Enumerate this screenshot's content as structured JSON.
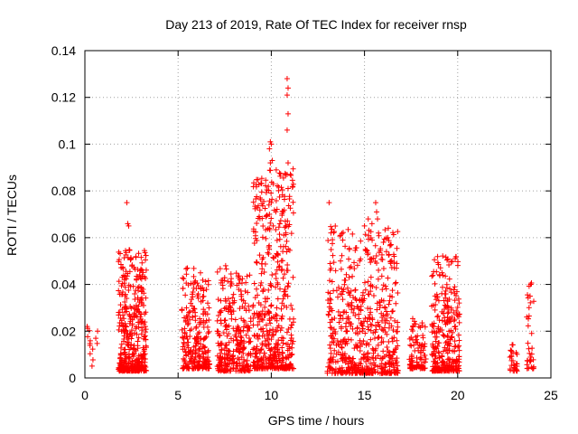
{
  "chart_data": {
    "type": "scatter",
    "title": "Day 213 of 2019, Rate Of TEC Index for receiver rnsp",
    "xlabel": "GPS time / hours",
    "ylabel": "ROTI / TECUs",
    "xlim": [
      0,
      25
    ],
    "ylim": [
      0,
      0.14
    ],
    "x_ticks": [
      0,
      5,
      10,
      15,
      20,
      25
    ],
    "x_tick_labels": [
      "0",
      "5",
      "10",
      "15",
      "20",
      "25"
    ],
    "y_ticks": [
      0,
      0.02,
      0.04,
      0.06,
      0.08,
      0.1,
      0.12,
      0.14
    ],
    "y_tick_labels": [
      "0",
      "0.02",
      "0.04",
      "0.06",
      "0.08",
      "0.1",
      "0.12",
      "0.14"
    ],
    "grid": true,
    "marker": "+",
    "color": "#ff0000",
    "series": [
      {
        "name": "ROTI",
        "clusters": [
          {
            "x_range": [
              0.1,
              0.7
            ],
            "y_range": [
              0.005,
              0.022
            ],
            "count": 14
          },
          {
            "x_range": [
              1.8,
              3.3
            ],
            "y_range": [
              0.003,
              0.055
            ],
            "count": 420
          },
          {
            "x_range": [
              5.2,
              6.7
            ],
            "y_range": [
              0.004,
              0.047
            ],
            "count": 260
          },
          {
            "x_range": [
              7.1,
              8.9
            ],
            "y_range": [
              0.003,
              0.047
            ],
            "count": 300
          },
          {
            "x_range": [
              9.0,
              11.2
            ],
            "y_range": [
              0.004,
              0.09
            ],
            "count": 500
          },
          {
            "x_range": [
              13.0,
              16.8
            ],
            "y_range": [
              0.002,
              0.065
            ],
            "count": 620
          },
          {
            "x_range": [
              17.4,
              18.3
            ],
            "y_range": [
              0.004,
              0.026
            ],
            "count": 100
          },
          {
            "x_range": [
              18.6,
              20.1
            ],
            "y_range": [
              0.003,
              0.053
            ],
            "count": 300
          },
          {
            "x_range": [
              22.8,
              23.2
            ],
            "y_range": [
              0.003,
              0.018
            ],
            "count": 30
          },
          {
            "x_range": [
              23.7,
              24.1
            ],
            "y_range": [
              0.004,
              0.041
            ],
            "count": 35
          }
        ],
        "outliers": [
          {
            "x": 2.25,
            "y": 0.075
          },
          {
            "x": 2.3,
            "y": 0.066
          },
          {
            "x": 2.35,
            "y": 0.065
          },
          {
            "x": 9.95,
            "y": 0.101
          },
          {
            "x": 10.0,
            "y": 0.1
          },
          {
            "x": 9.9,
            "y": 0.098
          },
          {
            "x": 10.05,
            "y": 0.093
          },
          {
            "x": 9.95,
            "y": 0.092
          },
          {
            "x": 10.1,
            "y": 0.083
          },
          {
            "x": 10.0,
            "y": 0.075
          },
          {
            "x": 9.9,
            "y": 0.07
          },
          {
            "x": 10.1,
            "y": 0.065
          },
          {
            "x": 10.85,
            "y": 0.128
          },
          {
            "x": 10.9,
            "y": 0.124
          },
          {
            "x": 10.85,
            "y": 0.121
          },
          {
            "x": 10.9,
            "y": 0.113
          },
          {
            "x": 10.85,
            "y": 0.106
          },
          {
            "x": 10.9,
            "y": 0.092
          },
          {
            "x": 10.85,
            "y": 0.087
          },
          {
            "x": 10.9,
            "y": 0.081
          },
          {
            "x": 10.75,
            "y": 0.067
          },
          {
            "x": 10.8,
            "y": 0.065
          },
          {
            "x": 13.1,
            "y": 0.075
          },
          {
            "x": 13.2,
            "y": 0.062
          },
          {
            "x": 15.0,
            "y": 0.065
          },
          {
            "x": 15.2,
            "y": 0.068
          },
          {
            "x": 15.4,
            "y": 0.066
          },
          {
            "x": 15.6,
            "y": 0.075
          },
          {
            "x": 15.65,
            "y": 0.071
          },
          {
            "x": 15.7,
            "y": 0.068
          },
          {
            "x": 7.55,
            "y": 0.048
          }
        ]
      }
    ]
  }
}
